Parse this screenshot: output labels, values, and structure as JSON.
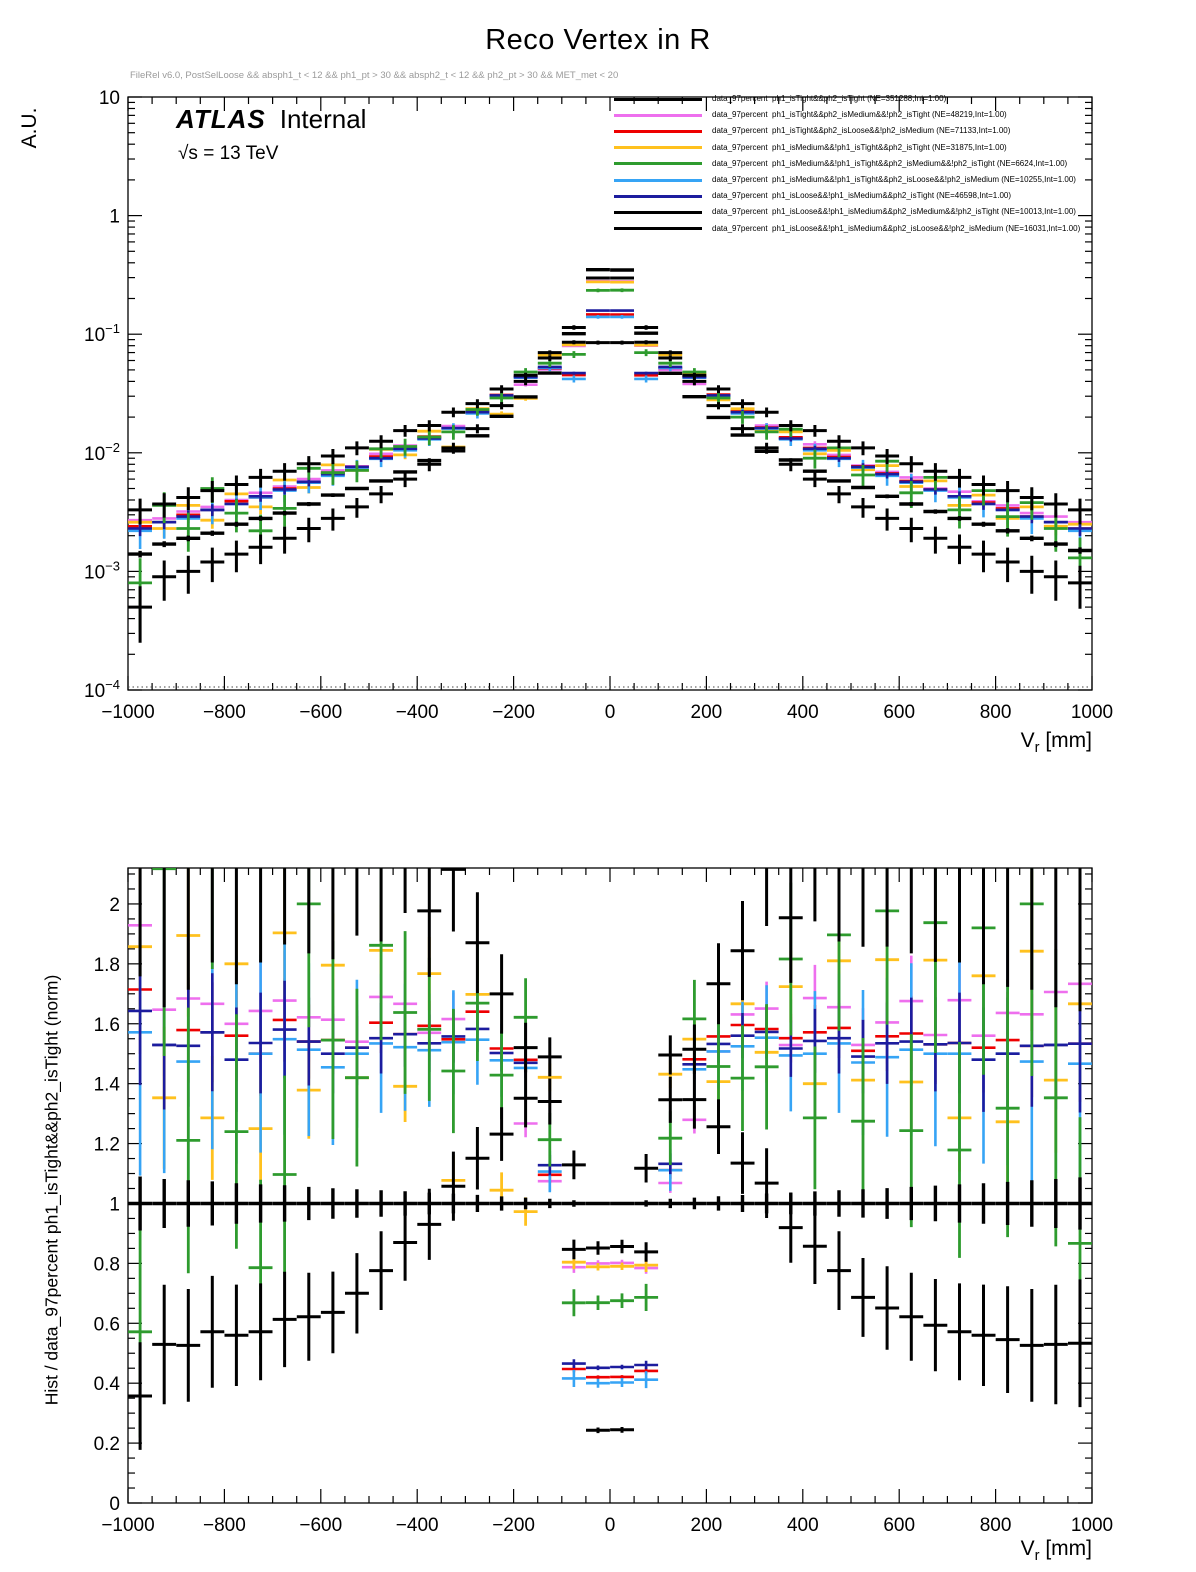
{
  "header": {
    "title": "Reco Vertex in R",
    "selection": "FileRel v6.0, PostSelLoose && absph1_t < 12 && ph1_pt > 30 && absph2_t < 12 && ph2_pt > 30 && MET_met < 20",
    "experiment": "ATLAS",
    "label": "Internal",
    "energy": "√s = 13 TeV"
  },
  "axes": {
    "x_title_base": "V",
    "x_title_sub": "r",
    "x_title_unit": " [mm]",
    "top_y_title": "A.U.",
    "bottom_y_title": "Hist / data_97percent  ph1_isTight&&ph2_isTight (norm)"
  },
  "chart_data": {
    "type": "scatter",
    "title": "Reco Vertex in R",
    "xlabel": "V_r [mm]",
    "bin_width_mm": 50,
    "legend_position": "top-right",
    "panels": [
      {
        "name": "distribution",
        "ylabel": "A.U.",
        "yscale": "log",
        "xlim": [
          -1000,
          1000
        ],
        "ylim": [
          0.0001,
          10
        ],
        "x_major": 200,
        "x_minor": 50
      },
      {
        "name": "ratio",
        "ylabel": "Hist / data_97percent ph1_isTight&&ph2_isTight (norm)",
        "yscale": "linear",
        "xlim": [
          -1000,
          1000
        ],
        "ylim": [
          0,
          2.12
        ],
        "x_major": 200,
        "x_minor": 50,
        "y_major": 0.2,
        "y_minor": 0.05,
        "reference_series": 0
      }
    ],
    "x": [
      -975,
      -925,
      -875,
      -825,
      -775,
      -725,
      -675,
      -625,
      -575,
      -525,
      -475,
      -425,
      -375,
      -325,
      -275,
      -225,
      -175,
      -125,
      -75,
      -25,
      25,
      75,
      125,
      175,
      225,
      275,
      325,
      375,
      425,
      475,
      525,
      575,
      625,
      675,
      725,
      775,
      825,
      875,
      925,
      975
    ],
    "series": [
      {
        "label": "data_97percent  ph1_isTight&&ph2_isTight (NE=351288,Int=1.00)",
        "color": "#000000",
        "NE": 351288,
        "lw": 3.4,
        "values": [
          0.0014,
          0.0017,
          0.0019,
          0.0021,
          0.0025,
          0.0028,
          0.0031,
          0.0037,
          0.0044,
          0.005,
          0.0058,
          0.0069,
          0.0086,
          0.0104,
          0.0139,
          0.0203,
          0.0296,
          0.047,
          0.101,
          0.35,
          0.348,
          0.102,
          0.0468,
          0.0297,
          0.0199,
          0.0141,
          0.0103,
          0.0087,
          0.007,
          0.0058,
          0.0051,
          0.0043,
          0.0037,
          0.0032,
          0.0028,
          0.0025,
          0.0022,
          0.0019,
          0.0017,
          0.0015
        ]
      },
      {
        "label": "data_97percent  ph1_isTight&&ph2_isMedium&&!ph2_isTight (NE=48219,Int=1.00)",
        "color": "#ee6fee",
        "NE": 48219,
        "lw": 2.6,
        "values": [
          0.0027,
          0.0028,
          0.0032,
          0.0035,
          0.004,
          0.0046,
          0.0052,
          0.006,
          0.0071,
          0.0077,
          0.0098,
          0.0115,
          0.0135,
          0.0168,
          0.0228,
          0.0305,
          0.0375,
          0.0505,
          0.0795,
          0.28,
          0.279,
          0.08,
          0.05,
          0.038,
          0.03,
          0.023,
          0.017,
          0.0133,
          0.0118,
          0.0096,
          0.0078,
          0.0069,
          0.0062,
          0.005,
          0.0047,
          0.0039,
          0.0036,
          0.0031,
          0.0029,
          0.0026
        ]
      },
      {
        "label": "data_97percent  ph1_isTight&&ph2_isLoose&&!ph2_isMedium (NE=71133,Int=1.00)",
        "color": "#ee0000",
        "NE": 71133,
        "lw": 2.6,
        "values": [
          0.0024,
          0.0026,
          0.003,
          0.0033,
          0.0039,
          0.0042,
          0.005,
          0.0057,
          0.0068,
          0.0076,
          0.0093,
          0.0108,
          0.0137,
          0.0161,
          0.0228,
          0.0308,
          0.0438,
          0.0515,
          0.0452,
          0.147,
          0.1465,
          0.045,
          0.052,
          0.044,
          0.031,
          0.0225,
          0.0163,
          0.0135,
          0.011,
          0.0092,
          0.0077,
          0.0067,
          0.0058,
          0.0049,
          0.0043,
          0.0038,
          0.0034,
          0.0029,
          0.0026,
          0.0023
        ]
      },
      {
        "label": "data_97percent  ph1_isMedium&&!ph1_isTight&&ph2_isTight (NE=31875,Int=1.00)",
        "color": "#ffc11e",
        "NE": 31875,
        "lw": 2.8,
        "values": [
          0.0026,
          0.0023,
          0.0036,
          0.0027,
          0.0045,
          0.0035,
          0.0059,
          0.0051,
          0.0079,
          0.0071,
          0.0107,
          0.0096,
          0.0152,
          0.0112,
          0.0236,
          0.0212,
          0.0288,
          0.0668,
          0.0812,
          0.276,
          0.275,
          0.081,
          0.067,
          0.046,
          0.028,
          0.0235,
          0.0155,
          0.015,
          0.0098,
          0.0105,
          0.0072,
          0.0078,
          0.0052,
          0.0058,
          0.0036,
          0.0044,
          0.0028,
          0.0035,
          0.0024,
          0.0025
        ]
      },
      {
        "label": "data_97percent  ph1_isMedium&&!ph1_isTight&&ph2_isMedium&&!ph2_isTight (NE=6624,Int=1.00)",
        "color": "#2e9b2e",
        "NE": 6624,
        "lw": 2.8,
        "values": [
          0.0008,
          0.0036,
          0.0023,
          0.005,
          0.0031,
          0.0022,
          0.0034,
          0.0074,
          0.0068,
          0.0071,
          0.0108,
          0.0113,
          0.0136,
          0.015,
          0.0232,
          0.029,
          0.048,
          0.057,
          0.0675,
          0.234,
          0.235,
          0.07,
          0.057,
          0.048,
          0.029,
          0.02,
          0.015,
          0.0158,
          0.009,
          0.011,
          0.0065,
          0.0085,
          0.0046,
          0.0062,
          0.0033,
          0.0048,
          0.0029,
          0.0038,
          0.0023,
          0.0013
        ]
      },
      {
        "label": "data_97percent  ph1_isMedium&&!ph1_isTight&&ph2_isLoose&&!ph2_isMedium (NE=10255,Int=1.00)",
        "color": "#36a4f5",
        "NE": 10255,
        "lw": 2.6,
        "values": [
          0.0022,
          0.0026,
          0.0028,
          0.0033,
          0.0037,
          0.0042,
          0.0048,
          0.0056,
          0.0064,
          0.0075,
          0.0089,
          0.0105,
          0.013,
          0.016,
          0.0215,
          0.03,
          0.043,
          0.052,
          0.042,
          0.14,
          0.14,
          0.042,
          0.052,
          0.043,
          0.03,
          0.0215,
          0.016,
          0.013,
          0.0105,
          0.0089,
          0.0075,
          0.0064,
          0.0056,
          0.0048,
          0.0042,
          0.0037,
          0.0033,
          0.0028,
          0.0026,
          0.0022
        ]
      },
      {
        "label": "data_97percent  ph1_isLoose&&!ph1_isMedium&&ph2_isTight (NE=46598,Int=1.00)",
        "color": "#1c1c9e",
        "NE": 46598,
        "lw": 2.6,
        "values": [
          0.0023,
          0.0026,
          0.0029,
          0.0033,
          0.0037,
          0.0043,
          0.0049,
          0.0057,
          0.0066,
          0.0076,
          0.009,
          0.0108,
          0.0132,
          0.0162,
          0.022,
          0.0305,
          0.0435,
          0.053,
          0.047,
          0.158,
          0.158,
          0.047,
          0.053,
          0.0435,
          0.0305,
          0.022,
          0.0162,
          0.0132,
          0.0108,
          0.009,
          0.0076,
          0.0066,
          0.0057,
          0.0049,
          0.0043,
          0.0037,
          0.0033,
          0.0029,
          0.0026,
          0.0023
        ]
      },
      {
        "label": "data_97percent  ph1_isLoose&&!ph1_isMedium&&ph2_isMedium&&!ph2_isTight (NE=10013,Int=1.00)",
        "color": "#000000",
        "NE": 10013,
        "lw": 3.0,
        "values": [
          0.0033,
          0.0037,
          0.0042,
          0.0048,
          0.0054,
          0.0062,
          0.007,
          0.0081,
          0.0094,
          0.011,
          0.0125,
          0.0154,
          0.017,
          0.022,
          0.026,
          0.0345,
          0.04,
          0.063,
          0.114,
          0.298,
          0.298,
          0.114,
          0.063,
          0.04,
          0.0345,
          0.026,
          0.022,
          0.017,
          0.0154,
          0.0125,
          0.011,
          0.0094,
          0.0081,
          0.007,
          0.0062,
          0.0054,
          0.0048,
          0.0042,
          0.0037,
          0.0033
        ]
      },
      {
        "label": "data_97percent  ph1_isLoose&&!ph1_isMedium&&ph2_isLoose&&!ph2_isMedium (NE=16031,Int=1.00)",
        "color": "#000000",
        "NE": 16031,
        "lw": 3.0,
        "values": [
          0.0005,
          0.0009,
          0.001,
          0.0012,
          0.0014,
          0.0016,
          0.0019,
          0.0023,
          0.0028,
          0.0035,
          0.0045,
          0.006,
          0.008,
          0.011,
          0.016,
          0.025,
          0.045,
          0.07,
          0.0855,
          0.085,
          0.085,
          0.0855,
          0.07,
          0.045,
          0.025,
          0.016,
          0.011,
          0.008,
          0.006,
          0.0045,
          0.0035,
          0.0028,
          0.0023,
          0.0019,
          0.0016,
          0.0014,
          0.0012,
          0.001,
          0.0009,
          0.0008
        ]
      }
    ]
  }
}
